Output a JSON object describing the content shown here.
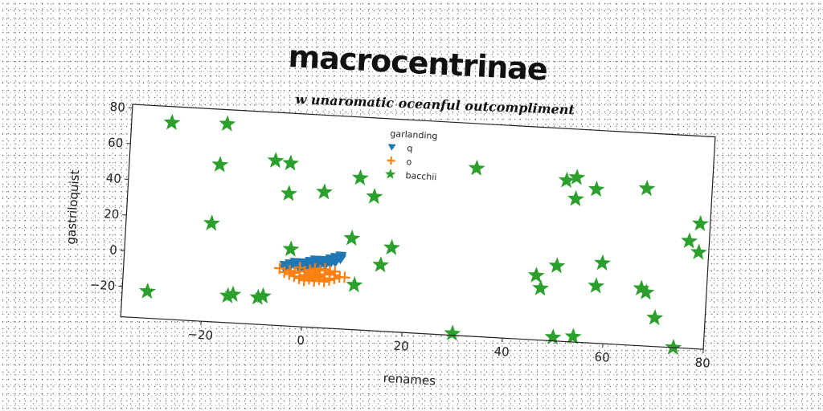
{
  "chart_data": {
    "type": "scatter",
    "title": "macrocentrinae",
    "subtitle": "w unaromatic oceanful outcompliment",
    "xlabel": "renames",
    "ylabel": "gastriloquist",
    "xlim": [
      -36,
      80
    ],
    "ylim": [
      -37,
      82
    ],
    "x_ticks": [
      -20,
      0,
      20,
      40,
      60,
      80
    ],
    "y_ticks": [
      -20,
      0,
      20,
      40,
      60,
      80
    ],
    "legend": {
      "title": "garlanding",
      "placement": "top-center"
    },
    "series": [
      {
        "name": "q",
        "marker": "triangle-down",
        "color": "#1f77b4",
        "points": [
          [
            -4,
            -3
          ],
          [
            -3,
            -2
          ],
          [
            -2,
            -2
          ],
          [
            -1,
            -1
          ],
          [
            0,
            -1
          ],
          [
            1,
            0
          ],
          [
            2,
            0
          ],
          [
            3,
            1
          ],
          [
            4,
            1
          ],
          [
            5,
            2
          ],
          [
            6,
            3
          ],
          [
            7,
            4
          ],
          [
            -3,
            -4
          ],
          [
            -2,
            -3
          ],
          [
            -1,
            -3
          ],
          [
            0,
            -2
          ],
          [
            1,
            -2
          ],
          [
            2,
            -1
          ],
          [
            3,
            -1
          ],
          [
            4,
            0
          ],
          [
            5,
            0
          ],
          [
            6,
            1
          ],
          [
            7,
            2
          ],
          [
            -1,
            -5
          ],
          [
            0,
            -4
          ],
          [
            1,
            -4
          ],
          [
            2,
            -3
          ],
          [
            3,
            -2
          ],
          [
            4,
            -2
          ],
          [
            5,
            -1
          ],
          [
            6,
            0
          ],
          [
            0,
            -3
          ],
          [
            2,
            -2
          ],
          [
            4,
            -1
          ],
          [
            -2,
            -1
          ],
          [
            3,
            0
          ],
          [
            5,
            1
          ],
          [
            1,
            -1
          ],
          [
            -4,
            -5
          ],
          [
            6,
            2
          ],
          [
            7,
            3
          ],
          [
            2,
            1
          ]
        ]
      },
      {
        "name": "o",
        "marker": "plus",
        "color": "#ff7f0e",
        "points": [
          [
            -5,
            -5
          ],
          [
            -3,
            -6
          ],
          [
            -2,
            -7
          ],
          [
            -1,
            -6
          ],
          [
            0,
            -8
          ],
          [
            1,
            -7
          ],
          [
            2,
            -6
          ],
          [
            3,
            -8
          ],
          [
            4,
            -7
          ],
          [
            5,
            -6
          ],
          [
            6,
            -7
          ],
          [
            7,
            -8
          ],
          [
            8,
            -8
          ],
          [
            -2,
            -9
          ],
          [
            -1,
            -10
          ],
          [
            0,
            -9
          ],
          [
            1,
            -10
          ],
          [
            2,
            -9
          ],
          [
            3,
            -10
          ],
          [
            4,
            -9
          ],
          [
            5,
            -10
          ],
          [
            -1,
            -4
          ],
          [
            1,
            -5
          ],
          [
            3,
            -5
          ],
          [
            5,
            -5
          ],
          [
            0,
            -11
          ],
          [
            2,
            -11
          ],
          [
            4,
            -11
          ],
          [
            6,
            -9
          ],
          [
            -3,
            -8
          ],
          [
            -4,
            -7
          ],
          [
            1,
            -8
          ],
          [
            3,
            -7
          ],
          [
            2,
            -4
          ],
          [
            4,
            -4
          ],
          [
            6,
            -5
          ],
          [
            0,
            -6
          ],
          [
            2,
            -8
          ]
        ]
      },
      {
        "name": "bacchii",
        "marker": "star",
        "color": "#2ca02c",
        "points": [
          [
            -28,
            73
          ],
          [
            -17,
            74
          ],
          [
            -18,
            51
          ],
          [
            -7,
            55
          ],
          [
            -4,
            54
          ],
          [
            -19,
            18
          ],
          [
            -4,
            37
          ],
          [
            3,
            39
          ],
          [
            10,
            48
          ],
          [
            13,
            38
          ],
          [
            9,
            14
          ],
          [
            17,
            10
          ],
          [
            15,
            0
          ],
          [
            -3,
            6
          ],
          [
            -31,
            -22
          ],
          [
            -15,
            -22
          ],
          [
            -14,
            -21
          ],
          [
            -9,
            -22
          ],
          [
            -8,
            -21
          ],
          [
            10,
            -12
          ],
          [
            30,
            -36
          ],
          [
            33,
            57
          ],
          [
            51,
            53
          ],
          [
            53,
            55
          ],
          [
            57,
            49
          ],
          [
            53,
            43
          ],
          [
            67,
            51
          ],
          [
            78,
            33
          ],
          [
            76,
            23
          ],
          [
            78,
            17
          ],
          [
            59,
            8
          ],
          [
            50,
            5
          ],
          [
            46,
            -1
          ],
          [
            47,
            -8
          ],
          [
            58,
            -5
          ],
          [
            67,
            -5
          ],
          [
            68,
            -7
          ],
          [
            70,
            -21
          ],
          [
            50,
            -35
          ],
          [
            54,
            -34
          ],
          [
            74,
            -37
          ]
        ]
      }
    ]
  }
}
